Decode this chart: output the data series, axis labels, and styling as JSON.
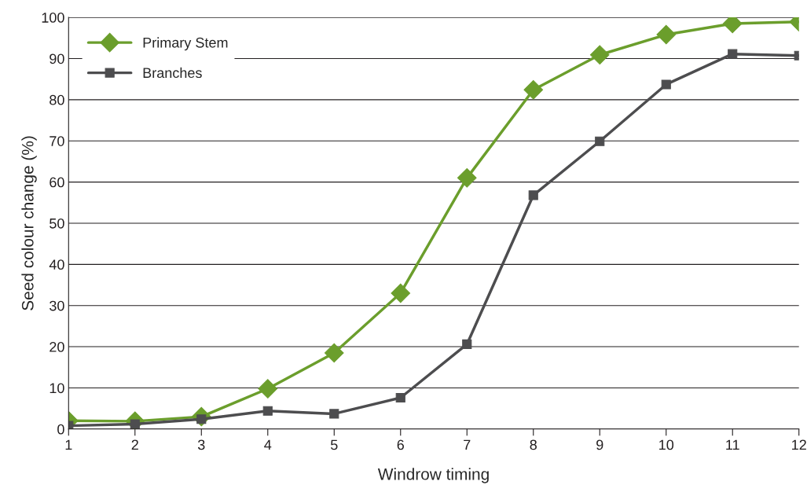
{
  "chart_data": {
    "type": "line",
    "xlabel": "Windrow timing",
    "ylabel": "Seed colour change (%)",
    "x": [
      1,
      2,
      3,
      4,
      5,
      6,
      7,
      8,
      9,
      10,
      11,
      12
    ],
    "series": [
      {
        "name": "Primary Stem",
        "color": "#6b9e2c",
        "marker": "diamond",
        "values": [
          2,
          1.9,
          3,
          9.8,
          18.5,
          33,
          61,
          82.4,
          90.9,
          95.8,
          98.5,
          98.9
        ]
      },
      {
        "name": "Branches",
        "color": "#4d4d4f",
        "marker": "square",
        "values": [
          0.8,
          1.2,
          2.4,
          4.4,
          3.7,
          7.6,
          20.6,
          56.8,
          69.9,
          83.7,
          91.1,
          90.7
        ]
      }
    ],
    "xlim": [
      1,
      12
    ],
    "xticks": [
      1,
      2,
      3,
      4,
      5,
      6,
      7,
      8,
      9,
      10,
      11,
      12
    ],
    "ylim": [
      0,
      100
    ],
    "yticks": [
      0,
      10,
      20,
      30,
      40,
      50,
      60,
      70,
      80,
      90,
      100
    ],
    "grid": "y",
    "legend": "top left",
    "line_style": "solid"
  }
}
